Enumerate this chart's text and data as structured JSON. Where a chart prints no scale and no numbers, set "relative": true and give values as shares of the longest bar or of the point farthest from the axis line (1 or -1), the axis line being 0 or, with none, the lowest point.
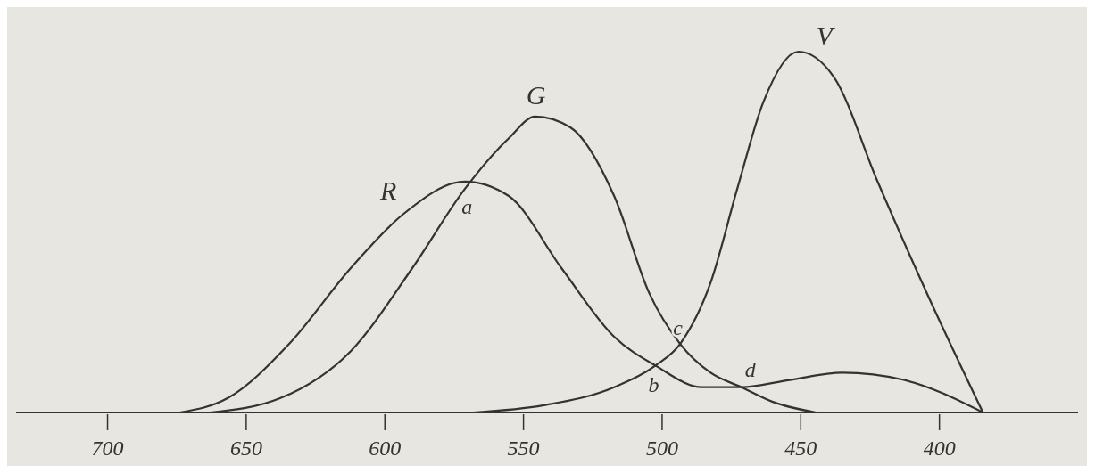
{
  "chart_data": {
    "type": "line",
    "relative": true,
    "xlim": [
      733,
      350
    ],
    "xticks": [
      700,
      650,
      600,
      550,
      500,
      450,
      400
    ],
    "series": [
      {
        "name": "R",
        "color": "#333333",
        "x": [
          674,
          656.6,
          634.5,
          612.3,
          593.3,
          571.1,
          555.3,
          536.3,
          517.3,
          502.4,
          485.6,
          471.4,
          454,
          435,
          412.8,
          384.3
        ],
        "values": [
          0,
          0.04,
          0.19,
          0.4,
          0.55,
          0.64,
          0.6,
          0.4,
          0.21,
          0.13,
          0.07,
          0.07,
          0.09,
          0.11,
          0.09,
          0
        ]
      },
      {
        "name": "G",
        "color": "#333333",
        "x": [
          663,
          637.6,
          612.3,
          590.1,
          571.1,
          555.3,
          545.8,
          533.1,
          517.3,
          504.6,
          493.5,
          482.5,
          471.4,
          460.3,
          444.5
        ],
        "values": [
          0,
          0.04,
          0.17,
          0.4,
          0.62,
          0.76,
          0.82,
          0.79,
          0.6,
          0.33,
          0.19,
          0.11,
          0.07,
          0.03,
          0
        ]
      },
      {
        "name": "V",
        "color": "#333333",
        "x": [
          568,
          542.6,
          517.3,
          502.4,
          493.5,
          482.5,
          472.9,
          463.5,
          450.8,
          438.1,
          422.3,
          403.3,
          384.3
        ],
        "values": [
          0,
          0.02,
          0.07,
          0.13,
          0.19,
          0.36,
          0.62,
          0.86,
          1,
          0.93,
          0.64,
          0.31,
          0
        ]
      }
    ],
    "annotations": [
      {
        "text": "a",
        "x": 573,
        "y": 0.62
      },
      {
        "text": "b",
        "x": 502.4,
        "y": 0.13
      },
      {
        "text": "c",
        "x": 493.5,
        "y": 0.19
      },
      {
        "text": "d",
        "x": 471.4,
        "y": 0.07
      }
    ]
  }
}
